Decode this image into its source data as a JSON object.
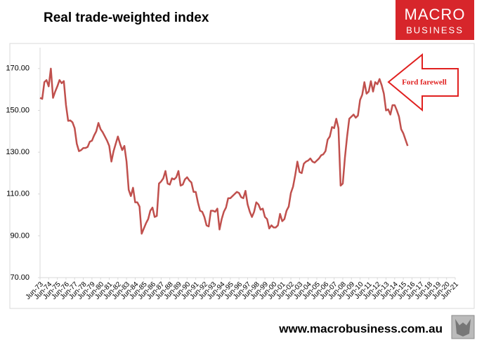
{
  "chart_data": {
    "type": "line",
    "title": "Real trade-weighted index",
    "annotation": "Ford farewell",
    "color": "#c0504d",
    "x": [
      1973.5,
      1973.75,
      1974,
      1974.25,
      1974.5,
      1974.75,
      1975,
      1975.25,
      1975.5,
      1975.75,
      1976,
      1976.25,
      1976.5,
      1976.75,
      1977,
      1977.25,
      1977.5,
      1977.75,
      1978,
      1978.25,
      1978.5,
      1978.75,
      1979,
      1979.25,
      1979.5,
      1979.75,
      1980,
      1980.25,
      1980.5,
      1980.75,
      1981,
      1981.25,
      1981.5,
      1981.75,
      1982,
      1982.25,
      1982.5,
      1982.75,
      1983,
      1983.25,
      1983.5,
      1983.75,
      1984,
      1984.25,
      1984.5,
      1984.75,
      1985,
      1985.25,
      1985.5,
      1985.75,
      1986,
      1986.25,
      1986.5,
      1986.75,
      1987,
      1987.25,
      1987.5,
      1987.75,
      1988,
      1988.25,
      1988.5,
      1988.75,
      1989,
      1989.25,
      1989.5,
      1989.75,
      1990,
      1990.25,
      1990.5,
      1990.75,
      1991,
      1991.25,
      1991.5,
      1991.75,
      1992,
      1992.25,
      1992.5,
      1992.75,
      1993,
      1993.25,
      1993.5,
      1993.75,
      1994,
      1994.25,
      1994.5,
      1994.75,
      1995,
      1995.25,
      1995.5,
      1995.75,
      1996,
      1996.25,
      1996.5,
      1996.75,
      1997,
      1997.25,
      1997.5,
      1997.75,
      1998,
      1998.25,
      1998.5,
      1998.75,
      1999,
      1999.25,
      1999.5,
      1999.75,
      2000,
      2000.25,
      2000.5,
      2000.75,
      2001,
      2001.25,
      2001.5,
      2001.75,
      2002,
      2002.25,
      2002.5,
      2002.75,
      2003,
      2003.25,
      2003.5,
      2003.75,
      2004,
      2004.25,
      2004.5,
      2004.75,
      2005,
      2005.25,
      2005.5,
      2005.75,
      2006,
      2006.25,
      2006.5,
      2006.75,
      2007,
      2007.25,
      2007.5,
      2007.75,
      2008,
      2008.25,
      2008.5,
      2008.75,
      2009,
      2009.25,
      2009.5,
      2009.75,
      2010,
      2010.25,
      2010.5,
      2010.75,
      2011,
      2011.25,
      2011.5,
      2011.75,
      2012,
      2012.25,
      2012.5,
      2012.75,
      2013,
      2013.25,
      2013.5,
      2013.75,
      2014,
      2014.25,
      2014.5,
      2014.75,
      2015,
      2015.25,
      2015.5,
      2015.75,
      2016
    ],
    "values": [
      156,
      155.5,
      163.5,
      164.5,
      161.5,
      170,
      156,
      159,
      161.5,
      164.5,
      163,
      164,
      152.5,
      145,
      145.2,
      144.3,
      141.5,
      134,
      130.5,
      131,
      132,
      132,
      132.5,
      135,
      135.5,
      138,
      140,
      144,
      141,
      139.5,
      137.5,
      135.5,
      133,
      125.5,
      130.5,
      134,
      137.5,
      134,
      131,
      133,
      125.5,
      112,
      109,
      113,
      106,
      106,
      104,
      91,
      93.5,
      96,
      98,
      102,
      103.5,
      99,
      99.5,
      115,
      116,
      117.5,
      121,
      115,
      114.5,
      117.5,
      117,
      118,
      121,
      114,
      114.5,
      117,
      118,
      116.5,
      115.5,
      111,
      111,
      106,
      102,
      101.5,
      99,
      95,
      94.5,
      102,
      102,
      101.5,
      103,
      93,
      98,
      101.5,
      103.5,
      108,
      108,
      109,
      110,
      111,
      110.5,
      108.5,
      108,
      111.5,
      105,
      101.5,
      99,
      101.5,
      106,
      105,
      102.5,
      103,
      99,
      98,
      93.5,
      95,
      94,
      94,
      95,
      100.5,
      97,
      98,
      102,
      104,
      110.5,
      113.5,
      119,
      125.5,
      120.5,
      120,
      124.5,
      125.5,
      126,
      127,
      125.5,
      125,
      126,
      127,
      128.5,
      129,
      130.5,
      136,
      137.5,
      142,
      141.5,
      146,
      141.5,
      114,
      115,
      127.5,
      137.5,
      146,
      147,
      148,
      146.5,
      147.5,
      155,
      157.5,
      163.5,
      158,
      159,
      164,
      159,
      163.5,
      162.5,
      165,
      162,
      158,
      150,
      150.5,
      148,
      152.5,
      152.5,
      150,
      147,
      141,
      139,
      136,
      133
    ],
    "xlim": [
      1973.5,
      2021.5
    ],
    "xticks": [
      {
        "value": 1973.5,
        "label": "Jun-73"
      },
      {
        "value": 1974.5,
        "label": "Jun-74"
      },
      {
        "value": 1975.5,
        "label": "Jun-75"
      },
      {
        "value": 1976.5,
        "label": "Jun-76"
      },
      {
        "value": 1977.5,
        "label": "Jun-77"
      },
      {
        "value": 1978.5,
        "label": "Jun-78"
      },
      {
        "value": 1979.5,
        "label": "Jun-79"
      },
      {
        "value": 1980.5,
        "label": "Jun-80"
      },
      {
        "value": 1981.5,
        "label": "Jun-81"
      },
      {
        "value": 1982.5,
        "label": "Jun-82"
      },
      {
        "value": 1983.5,
        "label": "Jun-83"
      },
      {
        "value": 1984.5,
        "label": "Jun-84"
      },
      {
        "value": 1985.5,
        "label": "Jun-85"
      },
      {
        "value": 1986.5,
        "label": "Jun-86"
      },
      {
        "value": 1987.5,
        "label": "Jun-87"
      },
      {
        "value": 1988.5,
        "label": "Jun-88"
      },
      {
        "value": 1989.5,
        "label": "Jun-89"
      },
      {
        "value": 1990.5,
        "label": "Jun-90"
      },
      {
        "value": 1991.5,
        "label": "Jun-91"
      },
      {
        "value": 1992.5,
        "label": "Jun-92"
      },
      {
        "value": 1993.5,
        "label": "Jun-93"
      },
      {
        "value": 1994.5,
        "label": "Jun-94"
      },
      {
        "value": 1995.5,
        "label": "Jun-95"
      },
      {
        "value": 1996.5,
        "label": "Jun-96"
      },
      {
        "value": 1997.5,
        "label": "Jun-97"
      },
      {
        "value": 1998.5,
        "label": "Jun-98"
      },
      {
        "value": 1999.5,
        "label": "Jun-99"
      },
      {
        "value": 2000.5,
        "label": "Jun-00"
      },
      {
        "value": 2001.5,
        "label": "Jun-01"
      },
      {
        "value": 2002.5,
        "label": "Jun-02"
      },
      {
        "value": 2003.5,
        "label": "Jun-03"
      },
      {
        "value": 2004.5,
        "label": "Jun-04"
      },
      {
        "value": 2005.5,
        "label": "Jun-05"
      },
      {
        "value": 2006.5,
        "label": "Jun-06"
      },
      {
        "value": 2007.5,
        "label": "Jun-07"
      },
      {
        "value": 2008.5,
        "label": "Jun-08"
      },
      {
        "value": 2009.5,
        "label": "Jun-09"
      },
      {
        "value": 2010.5,
        "label": "Jun-10"
      },
      {
        "value": 2011.5,
        "label": "Jun-11"
      },
      {
        "value": 2012.5,
        "label": "Jun-12"
      },
      {
        "value": 2013.5,
        "label": "Jun-13"
      },
      {
        "value": 2014.5,
        "label": "Jun-14"
      },
      {
        "value": 2015.5,
        "label": "Jun-15"
      },
      {
        "value": 2016.5,
        "label": "Jun-16"
      },
      {
        "value": 2017.5,
        "label": "Jun-17"
      },
      {
        "value": 2018.5,
        "label": "Jun-18"
      },
      {
        "value": 2019.5,
        "label": "Jun-19"
      },
      {
        "value": 2020.5,
        "label": "Jun-20"
      },
      {
        "value": 2021.5,
        "label": "Jun-21"
      }
    ],
    "ylim": [
      70,
      180
    ],
    "yticks": [
      {
        "value": 70,
        "label": "70.00"
      },
      {
        "value": 90,
        "label": "90.00"
      },
      {
        "value": 110,
        "label": "110.00"
      },
      {
        "value": 130,
        "label": "130.00"
      },
      {
        "value": 150,
        "label": "150.00"
      },
      {
        "value": 170,
        "label": "170.00"
      }
    ],
    "grid": false
  },
  "logo": {
    "top": "MACRO",
    "bottom": "BUSINESS"
  },
  "footer": "www.macrobusiness.com.au"
}
